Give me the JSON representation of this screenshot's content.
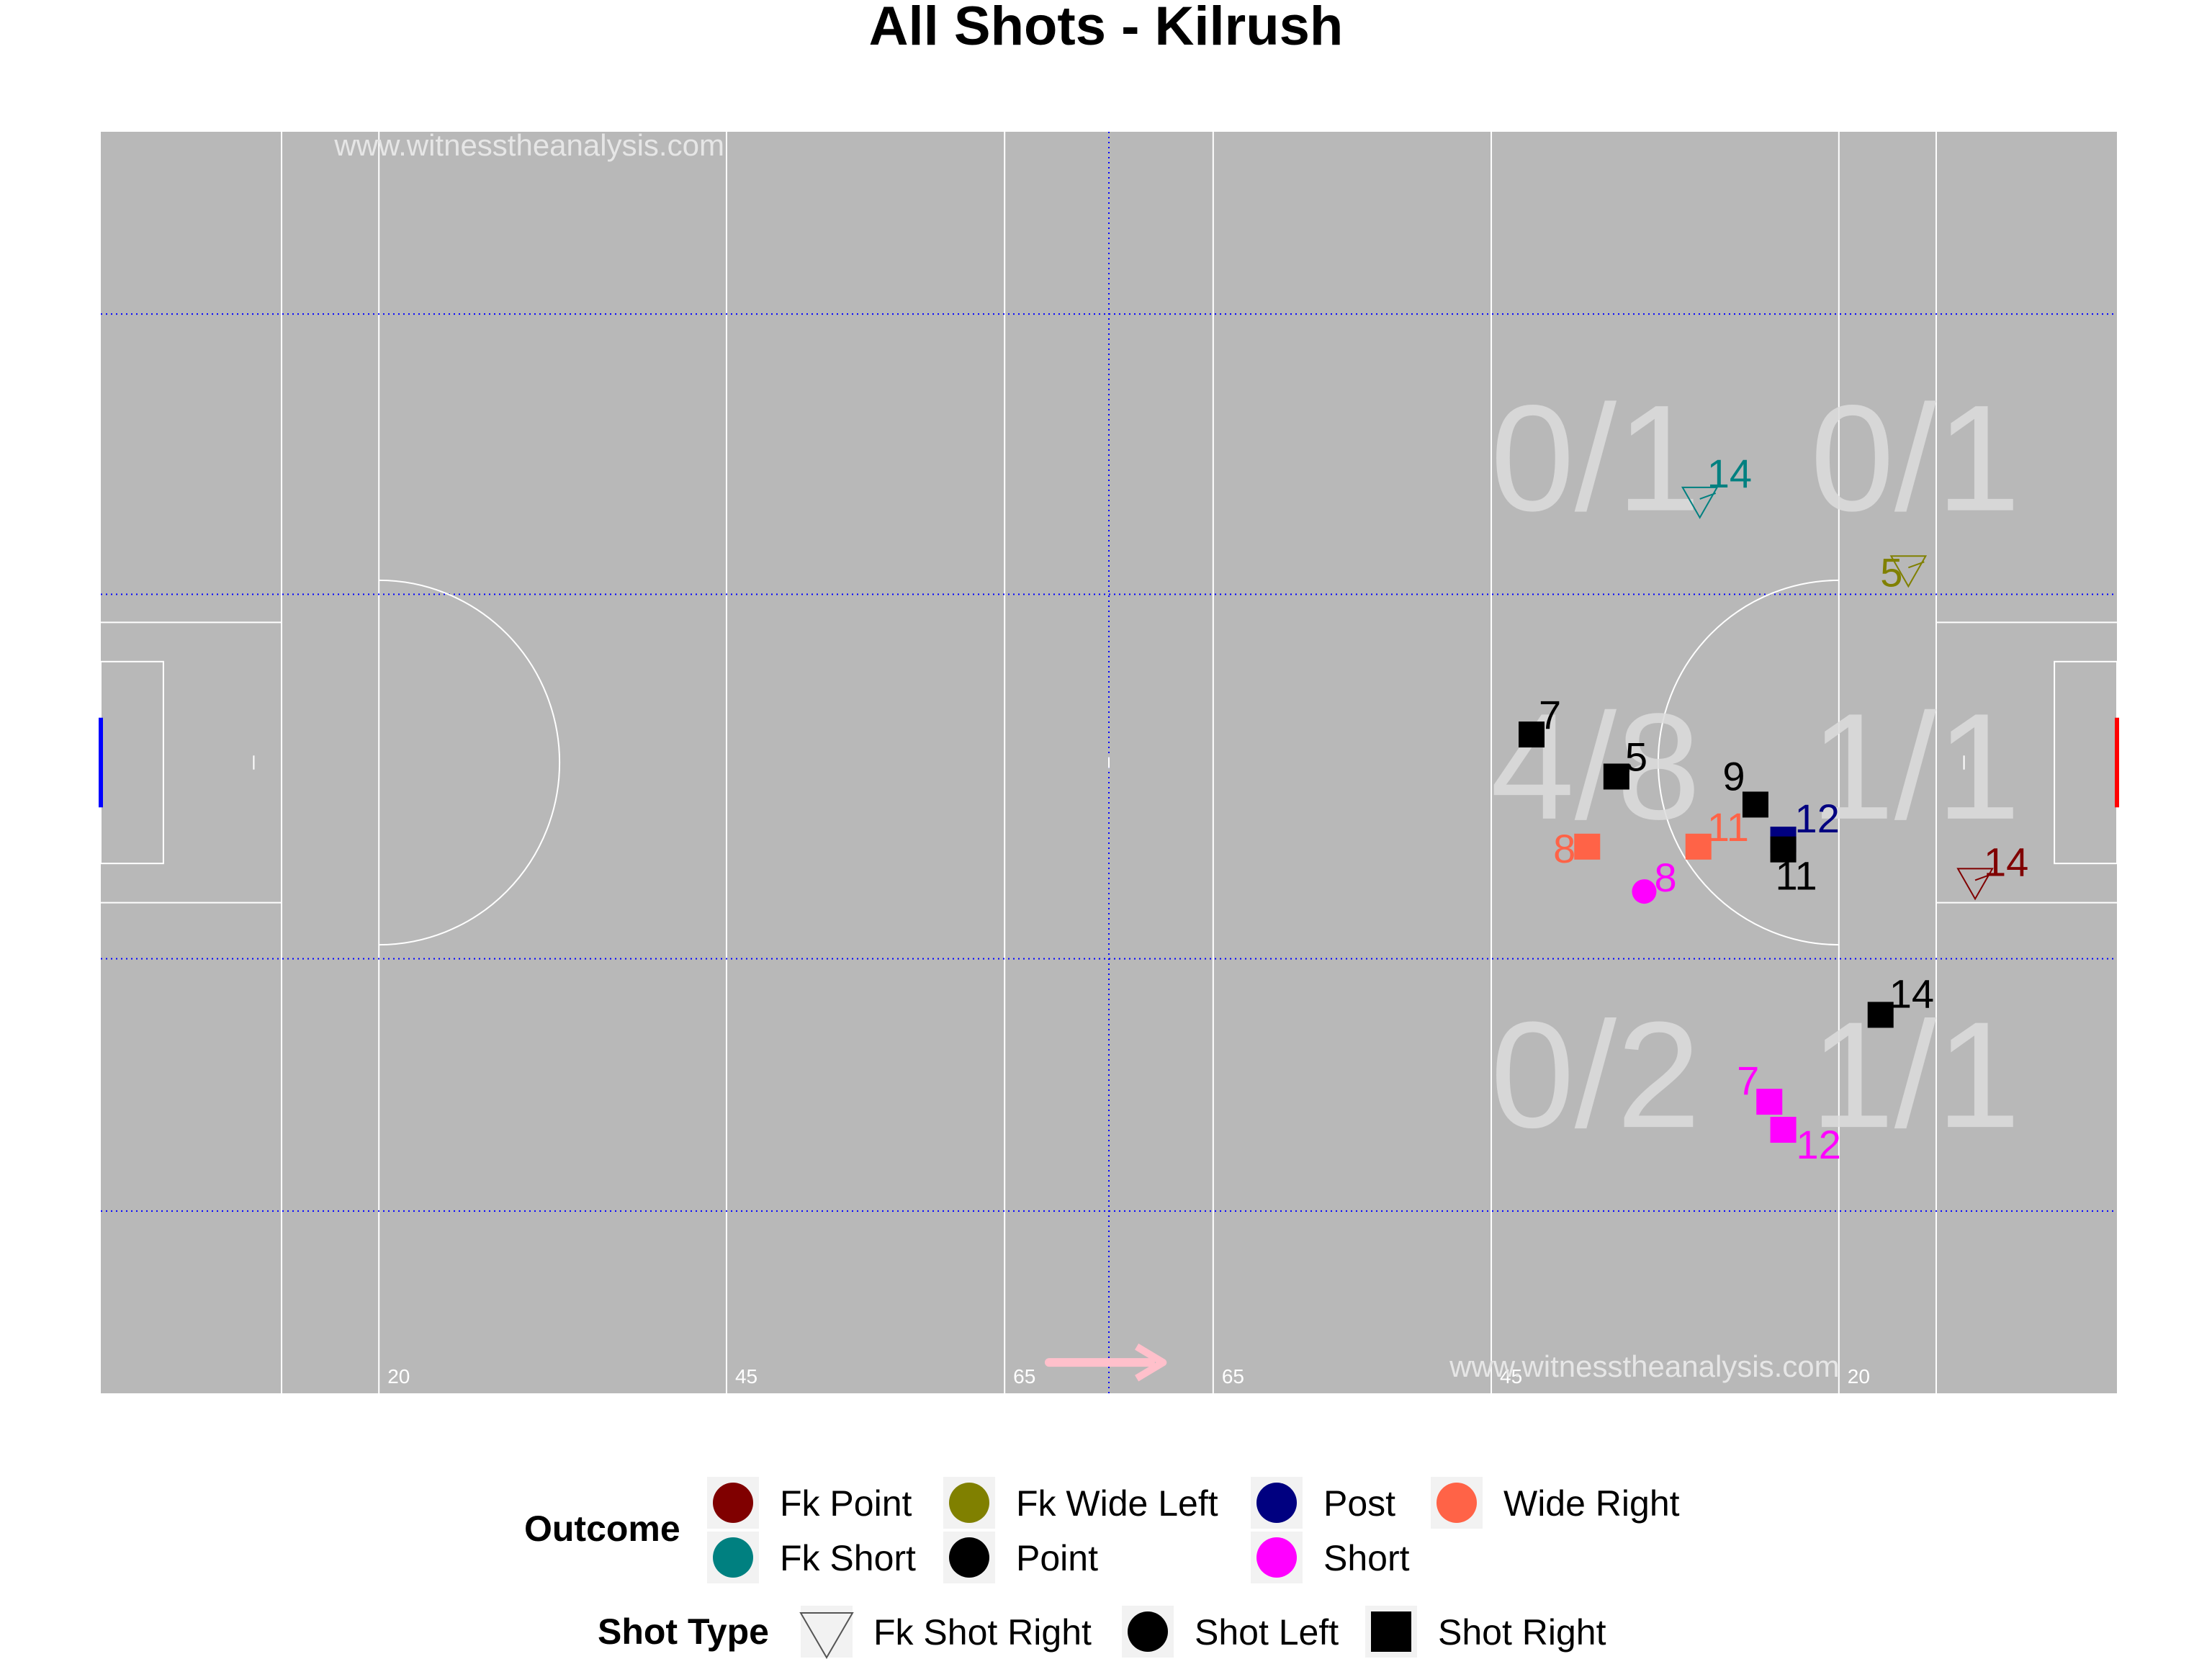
{
  "chart_data": {
    "type": "scatter",
    "title": "All Shots - Kilrush",
    "watermark": "www.witnesstheanalysis.com",
    "x_range": [
      0,
      145
    ],
    "y_range": [
      0,
      90
    ],
    "distance_labels": [
      "20",
      "45",
      "65",
      "65",
      "45",
      "20"
    ],
    "zones": [
      {
        "label": "0/1"
      },
      {
        "label": "0/1"
      },
      {
        "label": "4/8"
      },
      {
        "label": "1/1"
      },
      {
        "label": "0/2"
      },
      {
        "label": "1/1"
      }
    ],
    "shots": [
      {
        "x": 115.0,
        "y": 63.6,
        "outcome": "Fk Short",
        "type": "Fk Shot Right",
        "label": "14"
      },
      {
        "x": 130.0,
        "y": 58.7,
        "outcome": "Fk Wide Left",
        "type": "Fk Shot Right",
        "label": "5"
      },
      {
        "x": 102.9,
        "y": 47.0,
        "outcome": "Point",
        "type": "Shot Right",
        "label": "7"
      },
      {
        "x": 109.0,
        "y": 44.0,
        "outcome": "Point",
        "type": "Shot Right",
        "label": "5"
      },
      {
        "x": 119.0,
        "y": 42.0,
        "outcome": "Point",
        "type": "Shot Right",
        "label": "9"
      },
      {
        "x": 121.0,
        "y": 39.5,
        "outcome": "Post",
        "type": "Shot Right",
        "label": "12"
      },
      {
        "x": 121.0,
        "y": 38.8,
        "outcome": "Point",
        "type": "Shot Right",
        "label": "11"
      },
      {
        "x": 114.9,
        "y": 39.0,
        "outcome": "Wide Right",
        "type": "Shot Right",
        "label": "11"
      },
      {
        "x": 106.9,
        "y": 39.0,
        "outcome": "Wide Right",
        "type": "Shot Right",
        "label": "8"
      },
      {
        "x": 111.0,
        "y": 35.8,
        "outcome": "Short",
        "type": "Shot Left",
        "label": "8"
      },
      {
        "x": 134.8,
        "y": 36.4,
        "outcome": "Fk Point",
        "type": "Fk Shot Right",
        "label": "14"
      },
      {
        "x": 128.0,
        "y": 27.0,
        "outcome": "Point",
        "type": "Shot Right",
        "label": "14"
      },
      {
        "x": 120.0,
        "y": 20.8,
        "outcome": "Short",
        "type": "Shot Right",
        "label": "7"
      },
      {
        "x": 121.0,
        "y": 18.8,
        "outcome": "Short",
        "type": "Shot Right",
        "label": "12"
      }
    ],
    "legend": {
      "outcome_title": "Outcome",
      "outcome_items": [
        {
          "label": "Fk Point",
          "color": "#800000"
        },
        {
          "label": "Fk Short",
          "color": "#008080"
        },
        {
          "label": "Fk Wide Left",
          "color": "#808000"
        },
        {
          "label": "Point",
          "color": "#000000"
        },
        {
          "label": "Post",
          "color": "#000080"
        },
        {
          "label": "Short",
          "color": "#ff00ff"
        },
        {
          "label": "Wide Right",
          "color": "#ff6347"
        }
      ],
      "type_title": "Shot Type",
      "type_items": [
        {
          "label": "Fk Shot Right",
          "shape": "triangle-down"
        },
        {
          "label": "Shot Left",
          "shape": "circle"
        },
        {
          "label": "Shot Right",
          "shape": "square"
        }
      ]
    },
    "colors": {
      "pitch": "#b8b8b8",
      "lines": "#ffffff",
      "dotted": "#0000ff",
      "left_goal": "#0000ff",
      "right_goal": "#ff0000",
      "arrow": "#ffc0cb"
    }
  }
}
